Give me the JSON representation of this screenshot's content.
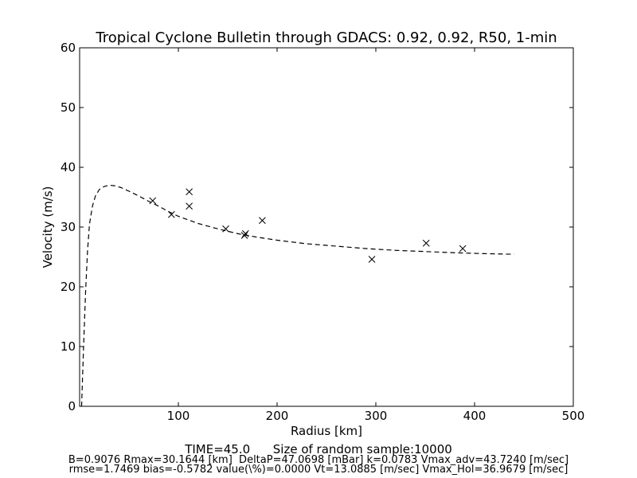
{
  "chart_data": {
    "type": "scatter",
    "title": "Tropical Cyclone Bulletin through GDACS: 0.92, 0.92, R50, 1-min",
    "xlabel": "Radius [km]",
    "ylabel": "Velocity (m/s)",
    "xlim": [
      0,
      500
    ],
    "ylim": [
      0,
      60
    ],
    "xticks": [
      100,
      200,
      300,
      400,
      500
    ],
    "yticks": [
      0,
      10,
      20,
      30,
      40,
      50,
      60
    ],
    "grid": false,
    "series": [
      {
        "marker": "x",
        "x": [
          74,
          93,
          111,
          111,
          148,
          167,
          168,
          185,
          296,
          351,
          388
        ],
        "y": [
          34.4,
          32.1,
          35.9,
          33.5,
          29.7,
          28.6,
          28.9,
          31.1,
          24.6,
          27.3,
          26.4
        ]
      },
      {
        "style": "dashed-line",
        "x": [
          2,
          4,
          6,
          8,
          10,
          13,
          16,
          20,
          25,
          30,
          36,
          42,
          50,
          60,
          70,
          80,
          90,
          100,
          120,
          140,
          160,
          180,
          200,
          230,
          260,
          290,
          320,
          350,
          380,
          410,
          440
        ],
        "y": [
          0,
          10,
          19,
          26,
          30.5,
          33.5,
          35.2,
          36.3,
          36.8,
          37.0,
          36.9,
          36.6,
          36.0,
          35.2,
          34.3,
          33.5,
          32.6,
          31.8,
          30.6,
          29.7,
          28.9,
          28.3,
          27.8,
          27.2,
          26.8,
          26.4,
          26.1,
          25.9,
          25.7,
          25.55,
          25.45
        ]
      }
    ]
  },
  "footer": {
    "line1": "TIME=45.0      Size of random sample:10000",
    "line2": "B=0.9076 Rmax=30.1644 [km]  DeltaP=47.0698 [mBar] k=0.0783 Vmax_adv=43.7240 [m/sec]",
    "line3": "rmse=1.7469 bias=-0.5782 value(\\%)=0.0000 Vt=13.0885 [m/sec] Vmax_Hol=36.9679 [m/sec]"
  }
}
